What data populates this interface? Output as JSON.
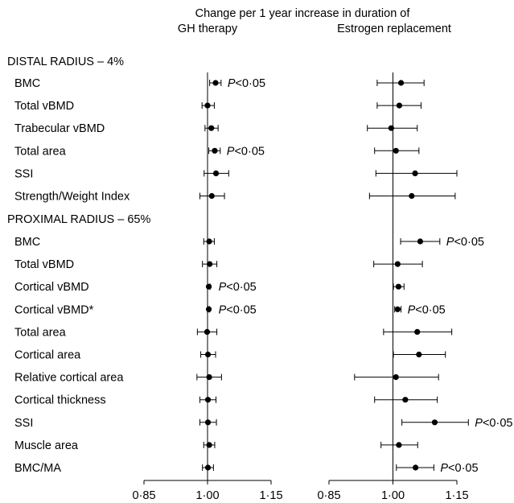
{
  "chart_data": {
    "type": "forest",
    "title": "Change per 1 year increase in duration of",
    "panels": [
      {
        "name": "GH therapy",
        "xlim": [
          0.85,
          1.15
        ],
        "ticks": [
          0.85,
          1.0,
          1.15
        ],
        "tick_labels": [
          "0·85",
          "1·00",
          "1·15"
        ],
        "reference_line": 1.0
      },
      {
        "name": "Estrogen replacement",
        "xlim": [
          0.85,
          1.15
        ],
        "ticks": [
          0.85,
          1.0,
          1.15
        ],
        "tick_labels": [
          "0·85",
          "1·00",
          "1·15"
        ],
        "reference_line": 1.0
      }
    ],
    "sections": [
      {
        "title": "DISTAL RADIUS – 4%",
        "rows": [
          {
            "label": "BMC",
            "gh": {
              "est": 1.019,
              "lo": 1.005,
              "hi": 1.032,
              "p": "P<0·05"
            },
            "est": {
              "est": 1.019,
              "lo": 0.963,
              "hi": 1.073,
              "p": ""
            }
          },
          {
            "label": "Total vBMD",
            "gh": {
              "est": 1.0,
              "lo": 0.987,
              "hi": 1.016,
              "p": ""
            },
            "est": {
              "est": 1.015,
              "lo": 0.963,
              "hi": 1.066,
              "p": ""
            }
          },
          {
            "label": "Trabecular vBMD",
            "gh": {
              "est": 1.009,
              "lo": 0.994,
              "hi": 1.025,
              "p": ""
            },
            "est": {
              "est": 0.996,
              "lo": 0.94,
              "hi": 1.057,
              "p": ""
            }
          },
          {
            "label": "Total area",
            "gh": {
              "est": 1.017,
              "lo": 1.003,
              "hi": 1.03,
              "p": "P<0·05"
            },
            "est": {
              "est": 1.007,
              "lo": 0.957,
              "hi": 1.061,
              "p": ""
            }
          },
          {
            "label": "SSI",
            "gh": {
              "est": 1.02,
              "lo": 0.992,
              "hi": 1.05,
              "p": ""
            },
            "est": {
              "est": 1.052,
              "lo": 0.96,
              "hi": 1.15,
              "p": ""
            }
          },
          {
            "label": "Strength/Weight Index",
            "gh": {
              "est": 1.01,
              "lo": 0.982,
              "hi": 1.04,
              "p": ""
            },
            "est": {
              "est": 1.044,
              "lo": 0.945,
              "hi": 1.146,
              "p": ""
            }
          }
        ]
      },
      {
        "title": "PROXIMAL RADIUS – 65%",
        "rows": [
          {
            "label": "BMC",
            "gh": {
              "est": 1.004,
              "lo": 0.991,
              "hi": 1.016,
              "p": ""
            },
            "est": {
              "est": 1.064,
              "lo": 1.018,
              "hi": 1.11,
              "p": "P<0·05"
            }
          },
          {
            "label": "Total vBMD",
            "gh": {
              "est": 1.005,
              "lo": 0.988,
              "hi": 1.022,
              "p": ""
            },
            "est": {
              "est": 1.011,
              "lo": 0.955,
              "hi": 1.069,
              "p": ""
            }
          },
          {
            "label": "Cortical vBMD",
            "gh": {
              "est": 1.003,
              "lo": 1.0,
              "hi": 1.006,
              "p": "P<0·05"
            },
            "est": {
              "est": 1.013,
              "lo": 1.001,
              "hi": 1.026,
              "p": ""
            }
          },
          {
            "label": "Cortical vBMD*",
            "gh": {
              "est": 1.003,
              "lo": 1.001,
              "hi": 1.005,
              "p": "P<0·05"
            },
            "est": {
              "est": 1.011,
              "lo": 1.004,
              "hi": 1.019,
              "p": "P<0·05"
            }
          },
          {
            "label": "Total area",
            "gh": {
              "est": 0.999,
              "lo": 0.976,
              "hi": 1.022,
              "p": ""
            },
            "est": {
              "est": 1.057,
              "lo": 0.978,
              "hi": 1.138,
              "p": ""
            }
          },
          {
            "label": "Cortical area",
            "gh": {
              "est": 1.001,
              "lo": 0.984,
              "hi": 1.019,
              "p": ""
            },
            "est": {
              "est": 1.061,
              "lo": 1.001,
              "hi": 1.123,
              "p": ""
            }
          },
          {
            "label": "Relative cortical area",
            "gh": {
              "est": 1.004,
              "lo": 0.975,
              "hi": 1.033,
              "p": ""
            },
            "est": {
              "est": 1.007,
              "lo": 0.91,
              "hi": 1.107,
              "p": ""
            }
          },
          {
            "label": "Cortical thickness",
            "gh": {
              "est": 1.001,
              "lo": 0.982,
              "hi": 1.02,
              "p": ""
            },
            "est": {
              "est": 1.029,
              "lo": 0.957,
              "hi": 1.104,
              "p": ""
            }
          },
          {
            "label": "SSI",
            "gh": {
              "est": 1.001,
              "lo": 0.982,
              "hi": 1.021,
              "p": ""
            },
            "est": {
              "est": 1.098,
              "lo": 1.021,
              "hi": 1.177,
              "p": "P<0·05"
            }
          },
          {
            "label": "Muscle area",
            "gh": {
              "est": 1.004,
              "lo": 0.991,
              "hi": 1.017,
              "p": ""
            },
            "est": {
              "est": 1.014,
              "lo": 0.972,
              "hi": 1.058,
              "p": ""
            }
          },
          {
            "label": "BMC/MA",
            "gh": {
              "est": 1.001,
              "lo": 0.988,
              "hi": 1.014,
              "p": ""
            },
            "est": {
              "est": 1.053,
              "lo": 1.008,
              "hi": 1.096,
              "p": "P<0·05"
            }
          }
        ]
      }
    ]
  }
}
